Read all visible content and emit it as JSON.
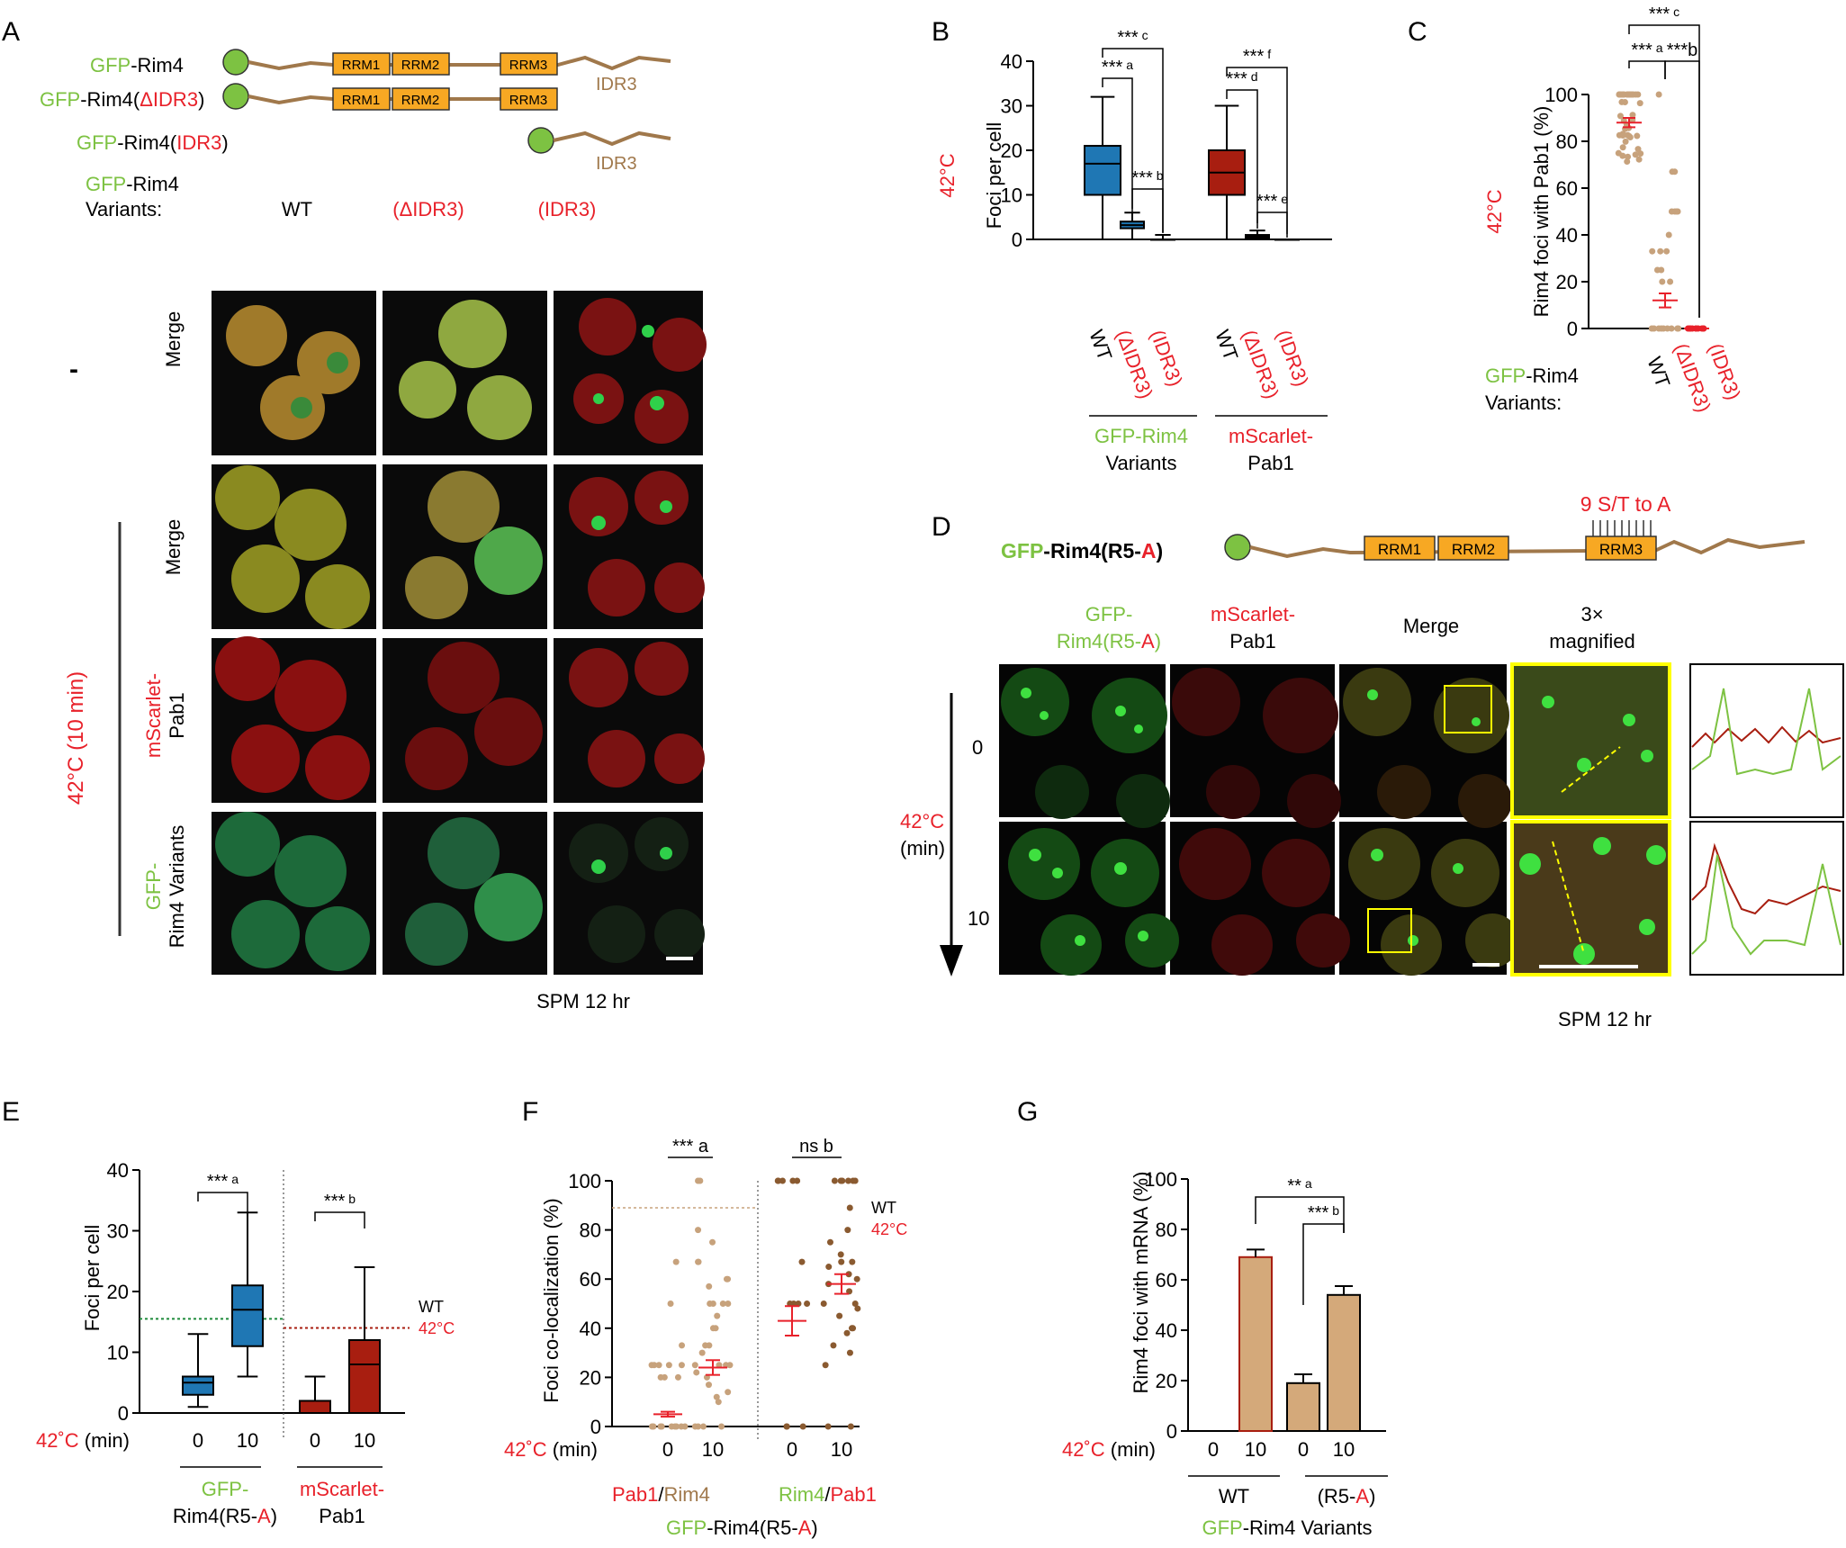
{
  "colors": {
    "green": "#7dc242",
    "red": "#e8212a",
    "brown": "#a0784b",
    "tan": "#c7a27c",
    "gold": "#f7a823",
    "blue": "#1f77b4",
    "darkred": "#a81e10",
    "yellow": "#ffff00"
  },
  "panelA": {
    "letter": "A",
    "constructs": [
      {
        "prefix": "GFP",
        "suffix": "-Rim4",
        "tag": ""
      },
      {
        "prefix": "GFP",
        "suffix": "-Rim4(",
        "tag": "ΔIDR3",
        "close": ")"
      },
      {
        "prefix": "GFP",
        "suffix": "-Rim4(",
        "tag": "IDR3",
        "close": ")"
      }
    ],
    "domains": [
      "RRM1",
      "RRM2",
      "RRM3"
    ],
    "idr_label": "IDR3",
    "variants_header": [
      "GFP-Rim4",
      "Variants:"
    ],
    "col_headers": [
      "WT",
      "(ΔIDR3)",
      "(IDR3)"
    ],
    "row_labels": [
      "Merge",
      "Merge",
      "mScarlet-",
      "Pab1",
      "GFP-",
      "Rim4 Variants"
    ],
    "minus_label": "-",
    "heat_label": "42°C (10 min)",
    "footer": "SPM 12 hr"
  },
  "panelB": {
    "letter": "B",
    "side_label": "42°C",
    "ylabel": "Foci per cell",
    "groups": [
      "GFP-Rim4",
      "Variants",
      "mScarlet-",
      "Pab1"
    ],
    "ticklabels": [
      "WT",
      "(ΔIDR3)",
      "(IDR3)",
      "WT",
      "(ΔIDR3)",
      "(IDR3)"
    ],
    "sig": [
      "*** a",
      "*** b",
      "*** c",
      "*** d",
      "*** e",
      "*** f"
    ]
  },
  "panelC": {
    "letter": "C",
    "side_label": "42°C",
    "ylabel": "Rim4 foci with Pab1 (%)",
    "ticklabels": [
      "WT",
      "(ΔIDR3)",
      "(IDR3)"
    ],
    "variants": [
      "GFP-Rim4",
      "Variants:"
    ],
    "sig": [
      "*** a",
      "***b",
      "*** c"
    ]
  },
  "panelD": {
    "letter": "D",
    "construct": "GFP-Rim4(R5-A)",
    "mut_label": "9 S/T to A",
    "domains": [
      "RRM1",
      "RRM2",
      "RRM3"
    ],
    "col_headers": [
      "GFP-",
      "Rim4(R5-A)",
      "mScarlet-",
      "Pab1",
      "Merge",
      "3×",
      "magnified"
    ],
    "time_labels": [
      "0",
      "10"
    ],
    "heat": "42°C",
    "unit": "(min)",
    "footer": "SPM 12 hr"
  },
  "panelE": {
    "letter": "E",
    "ylabel": "Foci per cell",
    "xlabel": "42°C (min)",
    "ticks": [
      "0",
      "10",
      "0",
      "10"
    ],
    "groups": [
      "GFP-",
      "Rim4(R5-A)",
      "mScarlet-",
      "Pab1"
    ],
    "sig": [
      "*** a",
      "*** b"
    ],
    "ref": [
      "WT",
      "42°C"
    ]
  },
  "panelF": {
    "letter": "F",
    "ylabel": "Foci co-localization (%)",
    "xlabel": "42°C (min)",
    "ticks": [
      "0",
      "10",
      "0",
      "10"
    ],
    "groups": [
      "Pab1/Rim4",
      "Rim4/Pab1"
    ],
    "footer": "GFP-Rim4(R5-A)",
    "sig": [
      "*** a",
      "ns b"
    ],
    "ref": [
      "WT",
      "42°C"
    ]
  },
  "panelG": {
    "letter": "G",
    "ylabel": "Rim4 foci with mRNA (%)",
    "xlabel": "42°C (min)",
    "ticks": [
      "0",
      "10",
      "0",
      "10"
    ],
    "groups": [
      "WT",
      "(R5-A)"
    ],
    "footer": "GFP-Rim4 Variants",
    "sig": [
      "** a",
      "*** b"
    ]
  },
  "chart_data": [
    {
      "panel": "B",
      "type": "box",
      "ylim": [
        0,
        40
      ],
      "yticks": [
        0,
        10,
        20,
        30,
        40
      ],
      "categories": [
        "WT",
        "(ΔIDR3)",
        "(IDR3)",
        "WT",
        "(ΔIDR3)",
        "(IDR3)"
      ],
      "series": [
        {
          "name": "GFP-Rim4 Variants",
          "boxes": [
            {
              "min": 0,
              "q1": 10,
              "med": 17,
              "q3": 21,
              "max": 32
            },
            {
              "min": 0,
              "q1": 2.5,
              "med": 3.2,
              "q3": 4,
              "max": 6
            },
            {
              "min": 0,
              "q1": 0,
              "med": 0,
              "q3": 0,
              "max": 1
            }
          ]
        },
        {
          "name": "mScarlet-Pab1",
          "boxes": [
            {
              "min": 0,
              "q1": 10,
              "med": 15,
              "q3": 20,
              "max": 30
            },
            {
              "min": 0,
              "q1": 0.4,
              "med": 0.8,
              "q3": 1,
              "max": 2
            },
            {
              "min": 0,
              "q1": 0,
              "med": 0,
              "q3": 0,
              "max": 0
            }
          ]
        }
      ]
    },
    {
      "panel": "C",
      "type": "scatter",
      "ylim": [
        0,
        100
      ],
      "yticks": [
        0,
        20,
        40,
        60,
        80,
        100
      ],
      "categories": [
        "WT",
        "(ΔIDR3)",
        "(IDR3)"
      ],
      "means": [
        88,
        12,
        0
      ],
      "sem": [
        2,
        3,
        0
      ]
    },
    {
      "panel": "E",
      "type": "box",
      "ylim": [
        0,
        40
      ],
      "yticks": [
        0,
        10,
        20,
        30,
        40
      ],
      "categories": [
        "0",
        "10",
        "0",
        "10"
      ],
      "series": [
        {
          "name": "GFP-Rim4(R5-A)",
          "boxes": [
            {
              "min": 1,
              "q1": 3,
              "med": 5,
              "q3": 6,
              "max": 13
            },
            {
              "min": 6,
              "q1": 11,
              "med": 17,
              "q3": 21,
              "max": 33
            }
          ]
        },
        {
          "name": "mScarlet-Pab1",
          "boxes": [
            {
              "min": 0,
              "q1": 0,
              "med": 0,
              "q3": 2,
              "max": 6
            },
            {
              "min": 0,
              "q1": 0,
              "med": 8,
              "q3": 12,
              "max": 24
            }
          ]
        }
      ],
      "reference": {
        "gfp": 15.5,
        "pab1": 14
      }
    },
    {
      "panel": "F",
      "type": "scatter",
      "ylim": [
        0,
        100
      ],
      "yticks": [
        0,
        20,
        40,
        60,
        80,
        100
      ],
      "categories": [
        "0",
        "10",
        "0",
        "10"
      ],
      "means": [
        5,
        24,
        43,
        58
      ],
      "sem": [
        1,
        3,
        6,
        4
      ],
      "reference": 89
    },
    {
      "panel": "G",
      "type": "bar",
      "ylim": [
        0,
        100
      ],
      "yticks": [
        0,
        20,
        40,
        60,
        80,
        100
      ],
      "categories": [
        "0",
        "10",
        "0",
        "10"
      ],
      "values": [
        0,
        69,
        19,
        54
      ],
      "errors": [
        0,
        3,
        3.5,
        3.5
      ]
    }
  ]
}
